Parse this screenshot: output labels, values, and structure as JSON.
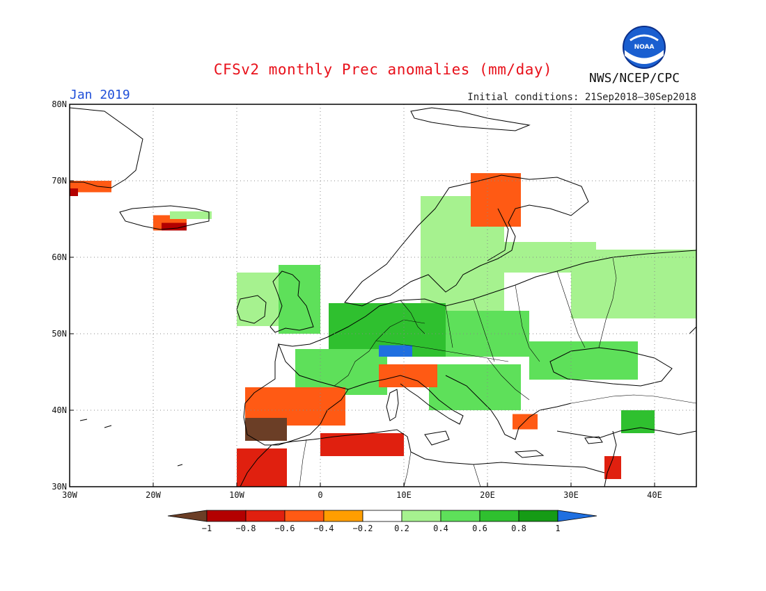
{
  "header": {
    "title": "CFSv2 monthly Prec anomalies (mm/day)",
    "month": "Jan 2019",
    "initial_conditions": "Initial conditions: 21Sep2018–30Sep2018",
    "agency": "NWS/NCEP/CPC",
    "logo_text": "NOAA"
  },
  "map": {
    "lon_range": [
      -30,
      45
    ],
    "lat_range": [
      30,
      80
    ],
    "lon_ticks": [
      {
        "value": -30,
        "label": "30W"
      },
      {
        "value": -20,
        "label": "20W"
      },
      {
        "value": -10,
        "label": "10W"
      },
      {
        "value": 0,
        "label": "0"
      },
      {
        "value": 10,
        "label": "10E"
      },
      {
        "value": 20,
        "label": "20E"
      },
      {
        "value": 30,
        "label": "30E"
      },
      {
        "value": 40,
        "label": "40E"
      }
    ],
    "lat_ticks": [
      {
        "value": 30,
        "label": "30N"
      },
      {
        "value": 40,
        "label": "40N"
      },
      {
        "value": 50,
        "label": "50N"
      },
      {
        "value": 60,
        "label": "60N"
      },
      {
        "value": 70,
        "label": "70N"
      },
      {
        "value": 80,
        "label": "80N"
      }
    ],
    "grid": true
  },
  "colorbar": {
    "levels": [
      -1,
      -0.8,
      -0.6,
      -0.4,
      -0.2,
      0.2,
      0.4,
      0.6,
      0.8,
      1
    ],
    "labels": [
      "−1",
      "−0.8",
      "−0.6",
      "−0.4",
      "−0.2",
      "0.2",
      "0.4",
      "0.6",
      "0.8",
      "1"
    ],
    "colors": [
      "#6b3e26",
      "#b30000",
      "#e0200f",
      "#ff5a14",
      "#ff9e00",
      "#ffffff",
      "#a6f28f",
      "#5ee05a",
      "#2fc02f",
      "#159b15",
      "#1f6fe0"
    ]
  },
  "chart_data": {
    "type": "heatmap",
    "title": "CFSv2 monthly Prec anomalies (mm/day)",
    "period": "Jan 2019",
    "units": "mm/day",
    "x_range": [
      -30,
      45
    ],
    "y_range": [
      30,
      80
    ],
    "regions": [
      {
        "lon": [
          -30,
          -25
        ],
        "lat": [
          68.5,
          70
        ],
        "value": -0.5
      },
      {
        "lon": [
          -30,
          -29
        ],
        "lat": [
          68,
          69
        ],
        "value": -0.9
      },
      {
        "lon": [
          -20,
          -16
        ],
        "lat": [
          63.5,
          65.5
        ],
        "value": -0.5
      },
      {
        "lon": [
          -19,
          -16
        ],
        "lat": [
          63.5,
          64.5
        ],
        "value": -0.9
      },
      {
        "lon": [
          -18,
          -13
        ],
        "lat": [
          65,
          66
        ],
        "value": 0.3
      },
      {
        "lon": [
          12,
          22
        ],
        "lat": [
          53,
          68
        ],
        "value": 0.3
      },
      {
        "lon": [
          22,
          33
        ],
        "lat": [
          58,
          62
        ],
        "value": 0.3
      },
      {
        "lon": [
          30,
          45
        ],
        "lat": [
          52,
          61
        ],
        "value": 0.3
      },
      {
        "lon": [
          -10,
          -5
        ],
        "lat": [
          51,
          58
        ],
        "value": 0.3
      },
      {
        "lon": [
          -5,
          0
        ],
        "lat": [
          50,
          59
        ],
        "value": 0.5
      },
      {
        "lon": [
          1,
          15
        ],
        "lat": [
          47,
          54
        ],
        "value": 0.7
      },
      {
        "lon": [
          15,
          25
        ],
        "lat": [
          47,
          53
        ],
        "value": 0.5
      },
      {
        "lon": [
          -3,
          8
        ],
        "lat": [
          42,
          48
        ],
        "value": 0.4
      },
      {
        "lon": [
          7,
          11
        ],
        "lat": [
          47,
          48.5
        ],
        "value": 1.1
      },
      {
        "lon": [
          13,
          24
        ],
        "lat": [
          40,
          46
        ],
        "value": 0.4
      },
      {
        "lon": [
          25,
          38
        ],
        "lat": [
          44,
          49
        ],
        "value": 0.4
      },
      {
        "lon": [
          36,
          40
        ],
        "lat": [
          37,
          40
        ],
        "value": 0.6
      },
      {
        "lon": [
          7,
          14
        ],
        "lat": [
          43,
          46
        ],
        "value": -0.6
      },
      {
        "lon": [
          -9,
          3
        ],
        "lat": [
          38,
          43
        ],
        "value": -0.6
      },
      {
        "lon": [
          -9,
          -4
        ],
        "lat": [
          36,
          39
        ],
        "value": -1.1
      },
      {
        "lon": [
          0,
          10
        ],
        "lat": [
          34,
          37
        ],
        "value": -0.7
      },
      {
        "lon": [
          -10,
          -4
        ],
        "lat": [
          30,
          35
        ],
        "value": -0.8
      },
      {
        "lon": [
          18,
          24
        ],
        "lat": [
          64,
          71
        ],
        "value": -0.6
      },
      {
        "lon": [
          23,
          26
        ],
        "lat": [
          37.5,
          39.5
        ],
        "value": -0.6
      },
      {
        "lon": [
          34,
          36
        ],
        "lat": [
          31,
          34
        ],
        "value": -0.8
      }
    ]
  }
}
